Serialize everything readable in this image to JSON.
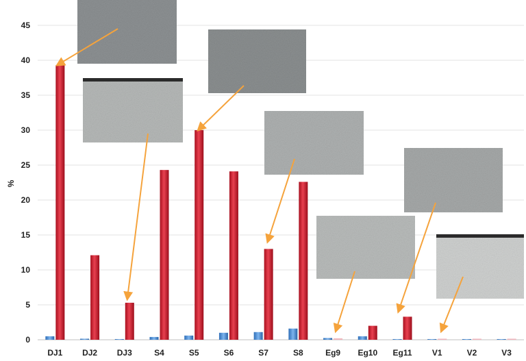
{
  "chart_data": {
    "type": "bar",
    "title": "",
    "xlabel": "",
    "ylabel": "%",
    "ylim": [
      0,
      45
    ],
    "yticks": [
      0,
      5,
      10,
      15,
      20,
      25,
      30,
      35,
      40,
      45
    ],
    "grid": true,
    "legend": "none",
    "categories": [
      "DJ1",
      "DJ2",
      "DJ3",
      "S4",
      "S5",
      "S6",
      "S7",
      "S8",
      "Eg9",
      "Eg10",
      "Eg11",
      "V1",
      "V2",
      "V3"
    ],
    "series": [
      {
        "color": "#4a90d9",
        "values": [
          0.5,
          0.15,
          0.1,
          0.4,
          0.6,
          1.0,
          1.1,
          1.6,
          0.25,
          0.5,
          0.1,
          0.1,
          0.1,
          0.1
        ]
      },
      {
        "color": "#d7283a",
        "values": [
          39.3,
          12.1,
          5.3,
          24.3,
          30.0,
          24.1,
          13.0,
          22.6,
          0.2,
          2.0,
          3.3,
          0.15,
          0.15,
          0.15
        ]
      }
    ],
    "annotations": [
      {
        "type": "micrograph-inset",
        "points_to": "DJ1"
      },
      {
        "type": "micrograph-inset",
        "points_to": "DJ3"
      },
      {
        "type": "micrograph-inset",
        "points_to": "S5"
      },
      {
        "type": "micrograph-inset",
        "points_to": "S7"
      },
      {
        "type": "micrograph-inset",
        "points_to": "Eg9"
      },
      {
        "type": "micrograph-inset",
        "points_to": "Eg11"
      },
      {
        "type": "micrograph-inset",
        "points_to": "V1"
      }
    ],
    "arrow_color": "#f5a33c"
  }
}
